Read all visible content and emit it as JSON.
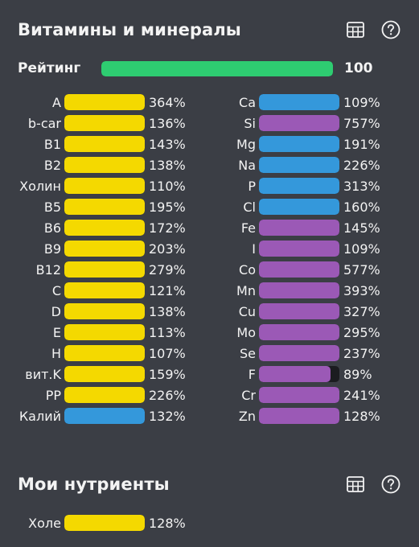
{
  "colors": {
    "vitamin": "#f4d900",
    "mineral_blue": "#3498db",
    "mineral_purple": "#9b59b6",
    "rating": "#2ecc71"
  },
  "vitamins_section": {
    "title": "Витамины и минералы",
    "table_icon": "table-icon",
    "help_icon": "help-icon",
    "rating": {
      "label": "Рейтинг",
      "value": "100",
      "fill": 1.0
    }
  },
  "left_column": [
    {
      "label": "A",
      "value": "364%",
      "fill": 1.0,
      "color": "#f4d900"
    },
    {
      "label": "b-car",
      "value": "136%",
      "fill": 1.0,
      "color": "#f4d900"
    },
    {
      "label": "B1",
      "value": "143%",
      "fill": 1.0,
      "color": "#f4d900"
    },
    {
      "label": "B2",
      "value": "138%",
      "fill": 1.0,
      "color": "#f4d900"
    },
    {
      "label": "Холин",
      "value": "110%",
      "fill": 1.0,
      "color": "#f4d900"
    },
    {
      "label": "B5",
      "value": "195%",
      "fill": 1.0,
      "color": "#f4d900"
    },
    {
      "label": "B6",
      "value": "172%",
      "fill": 1.0,
      "color": "#f4d900"
    },
    {
      "label": "B9",
      "value": "203%",
      "fill": 1.0,
      "color": "#f4d900"
    },
    {
      "label": "B12",
      "value": "279%",
      "fill": 1.0,
      "color": "#f4d900"
    },
    {
      "label": "C",
      "value": "121%",
      "fill": 1.0,
      "color": "#f4d900"
    },
    {
      "label": "D",
      "value": "138%",
      "fill": 1.0,
      "color": "#f4d900"
    },
    {
      "label": "E",
      "value": "113%",
      "fill": 1.0,
      "color": "#f4d900"
    },
    {
      "label": "H",
      "value": "107%",
      "fill": 1.0,
      "color": "#f4d900"
    },
    {
      "label": "вит.K",
      "value": "159%",
      "fill": 1.0,
      "color": "#f4d900"
    },
    {
      "label": "PP",
      "value": "226%",
      "fill": 1.0,
      "color": "#f4d900"
    },
    {
      "label": "Калий",
      "value": "132%",
      "fill": 1.0,
      "color": "#3498db"
    }
  ],
  "right_column": [
    {
      "label": "Ca",
      "value": "109%",
      "fill": 1.0,
      "color": "#3498db"
    },
    {
      "label": "Si",
      "value": "757%",
      "fill": 1.0,
      "color": "#9b59b6"
    },
    {
      "label": "Mg",
      "value": "191%",
      "fill": 1.0,
      "color": "#3498db"
    },
    {
      "label": "Na",
      "value": "226%",
      "fill": 1.0,
      "color": "#3498db"
    },
    {
      "label": "P",
      "value": "313%",
      "fill": 1.0,
      "color": "#3498db"
    },
    {
      "label": "Cl",
      "value": "160%",
      "fill": 1.0,
      "color": "#3498db"
    },
    {
      "label": "Fe",
      "value": "145%",
      "fill": 1.0,
      "color": "#9b59b6"
    },
    {
      "label": "I",
      "value": "109%",
      "fill": 1.0,
      "color": "#9b59b6"
    },
    {
      "label": "Co",
      "value": "577%",
      "fill": 1.0,
      "color": "#9b59b6"
    },
    {
      "label": "Mn",
      "value": "393%",
      "fill": 1.0,
      "color": "#9b59b6"
    },
    {
      "label": "Cu",
      "value": "327%",
      "fill": 1.0,
      "color": "#9b59b6"
    },
    {
      "label": "Mo",
      "value": "295%",
      "fill": 1.0,
      "color": "#9b59b6"
    },
    {
      "label": "Se",
      "value": "237%",
      "fill": 1.0,
      "color": "#9b59b6"
    },
    {
      "label": "F",
      "value": "89%",
      "fill": 0.89,
      "color": "#9b59b6"
    },
    {
      "label": "Cr",
      "value": "241%",
      "fill": 1.0,
      "color": "#9b59b6"
    },
    {
      "label": "Zn",
      "value": "128%",
      "fill": 1.0,
      "color": "#9b59b6"
    }
  ],
  "my_nutrients_section": {
    "title": "Мои нутриенты",
    "table_icon": "table-icon",
    "help_icon": "help-icon",
    "items": [
      {
        "label": "Холе",
        "value": "128%",
        "fill": 1.0,
        "color": "#f4d900"
      }
    ]
  }
}
